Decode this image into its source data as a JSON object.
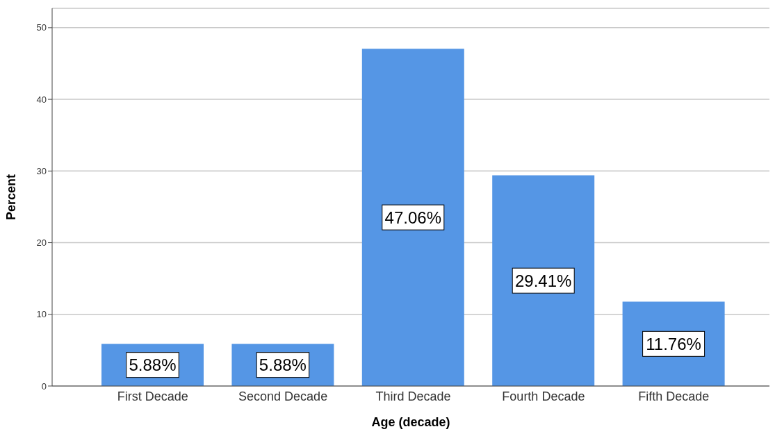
{
  "chart_data": {
    "type": "bar",
    "xlabel": "Age (decade)",
    "ylabel": "Percent",
    "categories": [
      "First Decade",
      "Second Decade",
      "Third Decade",
      "Fourth Decade",
      "Fifth Decade"
    ],
    "values": [
      5.88,
      5.88,
      47.06,
      29.41,
      11.76
    ],
    "value_labels": [
      "5.88%",
      "5.88%",
      "47.06%",
      "29.41%",
      "11.76%"
    ],
    "color": "#5596e5",
    "ylim": [
      0,
      52.7
    ],
    "yticks": [
      0,
      10,
      20,
      30,
      40,
      50
    ],
    "grid": "y"
  }
}
